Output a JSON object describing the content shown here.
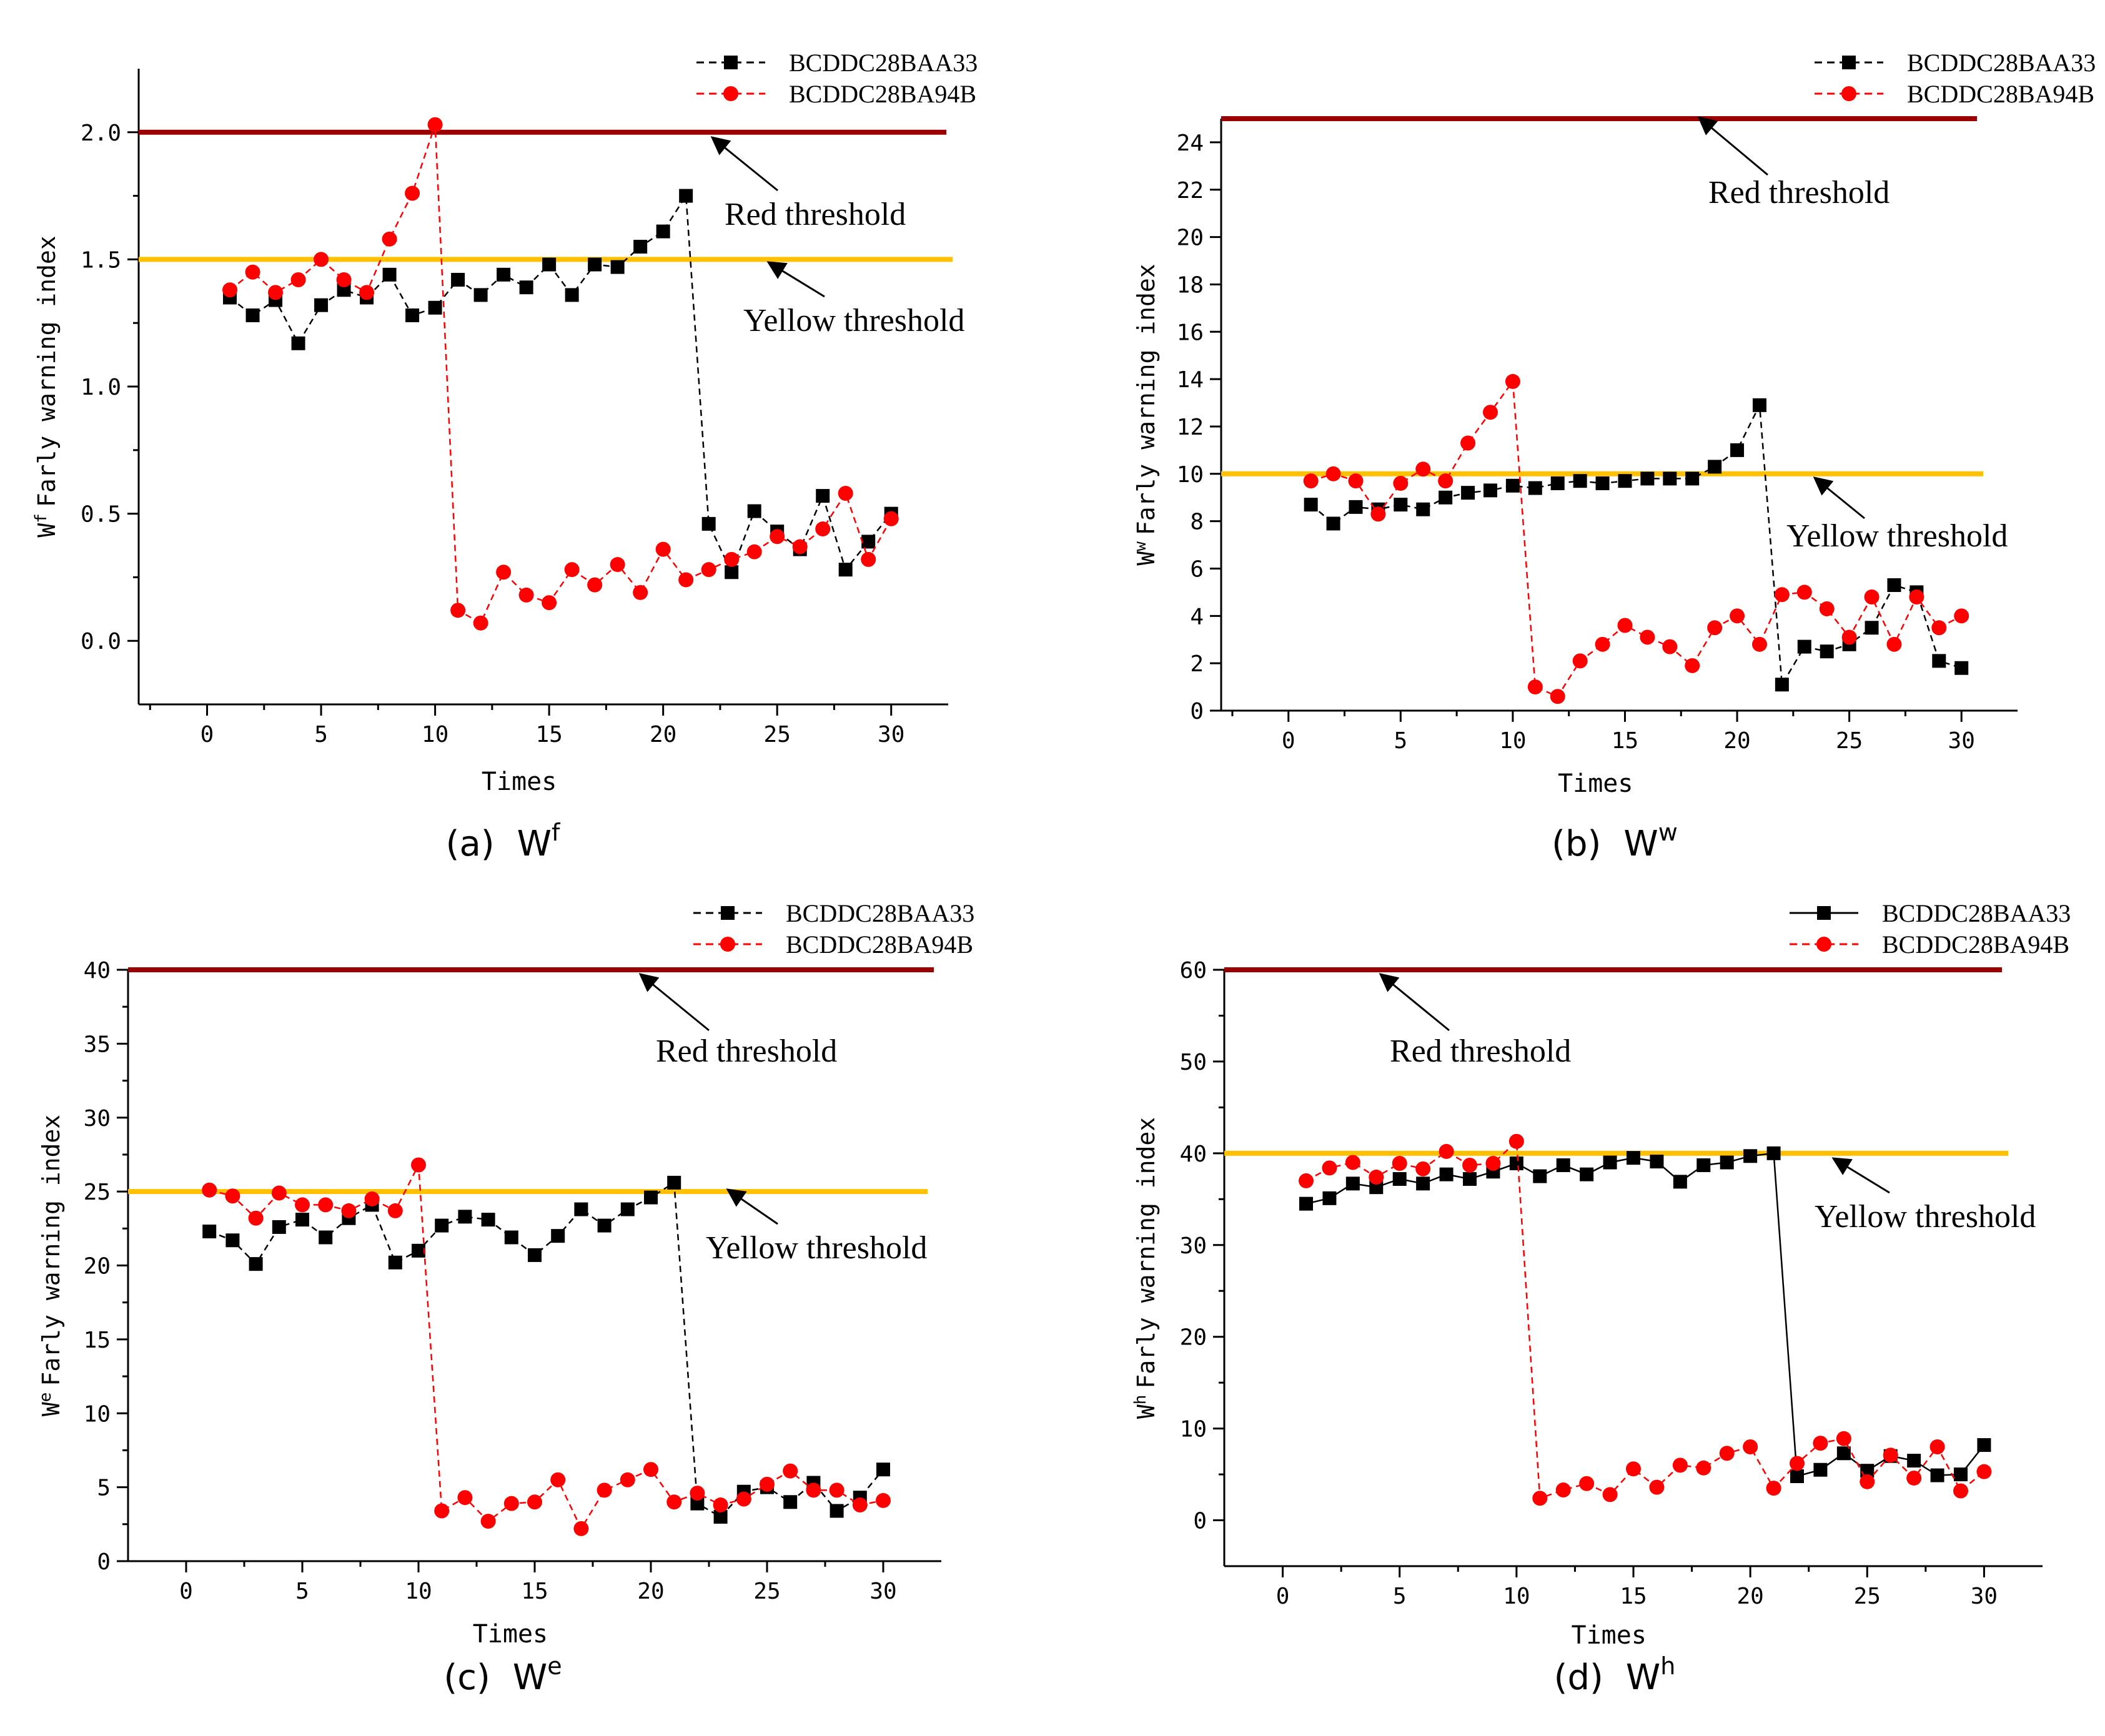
{
  "figure": {
    "series_names": [
      "BCDDC28BAA33",
      "BCDDC28BA94B"
    ],
    "series_colors": [
      "#000000",
      "#ff0000"
    ],
    "threshold_colors": {
      "red": "#9b0000",
      "yellow": "#ffc000"
    },
    "threshold_labels": {
      "red": "Red threshold",
      "yellow": "Yellow threshold"
    }
  },
  "chart_data": [
    {
      "type": "line",
      "caption_prefix": "(a)",
      "symbol": "W",
      "superscript": "f",
      "xlabel": "Times",
      "ylabel_rest": "Farly warning index",
      "xlim": [
        -3,
        32.5
      ],
      "ylim": [
        -0.25,
        2.25
      ],
      "xticks": [
        0,
        5,
        10,
        15,
        20,
        25,
        30
      ],
      "yticks": [
        0.0,
        0.5,
        1.0,
        1.5,
        2.0
      ],
      "ytick_labels": [
        "0.0",
        "0.5",
        "1.0",
        "1.5",
        "2.0"
      ],
      "minor_y": true,
      "red_threshold": 2.0,
      "yellow_threshold": 1.5,
      "x": [
        1,
        2,
        3,
        4,
        5,
        6,
        7,
        8,
        9,
        10,
        11,
        12,
        13,
        14,
        15,
        16,
        17,
        18,
        19,
        20,
        21,
        22,
        23,
        24,
        25,
        26,
        27,
        28,
        29,
        30
      ],
      "series": [
        {
          "name": "BCDDC28BAA33",
          "dash": true,
          "values": [
            1.35,
            1.28,
            1.34,
            1.17,
            1.32,
            1.38,
            1.35,
            1.44,
            1.28,
            1.31,
            1.42,
            1.36,
            1.44,
            1.39,
            1.48,
            1.36,
            1.48,
            1.47,
            1.55,
            1.61,
            1.75,
            0.46,
            0.27,
            0.51,
            0.43,
            0.36,
            0.57,
            0.28,
            0.39,
            0.5
          ]
        },
        {
          "name": "BCDDC28BA94B",
          "dash": true,
          "values": [
            1.38,
            1.45,
            1.37,
            1.42,
            1.5,
            1.42,
            1.37,
            1.58,
            1.76,
            2.03,
            0.12,
            0.07,
            0.27,
            0.18,
            0.15,
            0.28,
            0.22,
            0.3,
            0.19,
            0.36,
            0.24,
            0.28,
            0.32,
            0.35,
            0.41,
            0.37,
            0.44,
            0.58,
            0.32,
            0.48
          ]
        }
      ]
    },
    {
      "type": "line",
      "caption_prefix": "(b)",
      "symbol": "W",
      "superscript": "w",
      "xlabel": "Times",
      "ylabel_rest": "Farly warning index",
      "xlim": [
        -3,
        32.5
      ],
      "ylim": [
        0,
        25
      ],
      "xticks": [
        0,
        5,
        10,
        15,
        20,
        25,
        30
      ],
      "yticks": [
        0,
        2,
        4,
        6,
        8,
        10,
        12,
        14,
        16,
        18,
        20,
        22,
        24
      ],
      "ytick_labels": [
        "0",
        "2",
        "4",
        "6",
        "8",
        "10",
        "12",
        "14",
        "16",
        "18",
        "20",
        "22",
        "24"
      ],
      "minor_y": false,
      "red_threshold": 25,
      "yellow_threshold": 10,
      "x": [
        1,
        2,
        3,
        4,
        5,
        6,
        7,
        8,
        9,
        10,
        11,
        12,
        13,
        14,
        15,
        16,
        17,
        18,
        19,
        20,
        21,
        22,
        23,
        24,
        25,
        26,
        27,
        28,
        29,
        30
      ],
      "series": [
        {
          "name": "BCDDC28BAA33",
          "dash": true,
          "values": [
            8.7,
            7.9,
            8.6,
            8.5,
            8.7,
            8.5,
            9.0,
            9.2,
            9.3,
            9.5,
            9.4,
            9.6,
            9.7,
            9.6,
            9.7,
            9.8,
            9.8,
            9.8,
            10.3,
            11.0,
            12.9,
            1.1,
            2.7,
            2.5,
            2.8,
            3.5,
            5.3,
            5.0,
            2.1,
            1.8
          ]
        },
        {
          "name": "BCDDC28BA94B",
          "dash": true,
          "values": [
            9.7,
            10.0,
            9.7,
            8.3,
            9.6,
            10.2,
            9.7,
            11.3,
            12.6,
            13.9,
            1.0,
            0.6,
            2.1,
            2.8,
            3.6,
            3.1,
            2.7,
            1.9,
            3.5,
            4.0,
            2.8,
            4.9,
            5.0,
            4.3,
            3.1,
            4.8,
            2.8,
            4.8,
            3.5,
            4.0
          ]
        }
      ]
    },
    {
      "type": "line",
      "caption_prefix": "(c)",
      "symbol": "W",
      "superscript": "e",
      "xlabel": "Times",
      "ylabel_rest": "Farly warning index",
      "xlim": [
        -2.5,
        32.5
      ],
      "ylim": [
        0,
        40
      ],
      "xticks": [
        0,
        5,
        10,
        15,
        20,
        25,
        30
      ],
      "yticks": [
        0,
        5,
        10,
        15,
        20,
        25,
        30,
        35,
        40
      ],
      "ytick_labels": [
        "0",
        "5",
        "10",
        "15",
        "20",
        "25",
        "30",
        "35",
        "40"
      ],
      "minor_y": true,
      "red_threshold": 40,
      "yellow_threshold": 25,
      "x": [
        1,
        2,
        3,
        4,
        5,
        6,
        7,
        8,
        9,
        10,
        11,
        12,
        13,
        14,
        15,
        16,
        17,
        18,
        19,
        20,
        21,
        22,
        23,
        24,
        25,
        26,
        27,
        28,
        29,
        30
      ],
      "series": [
        {
          "name": "BCDDC28BAA33",
          "dash": true,
          "values": [
            22.3,
            21.7,
            20.1,
            22.6,
            23.1,
            21.9,
            23.2,
            24.1,
            20.2,
            21.0,
            22.7,
            23.3,
            23.1,
            21.9,
            20.7,
            22.0,
            23.8,
            22.7,
            23.8,
            24.6,
            25.6,
            3.9,
            3.0,
            4.7,
            5.0,
            4.0,
            5.3,
            3.4,
            4.3,
            6.2
          ]
        },
        {
          "name": "BCDDC28BA94B",
          "dash": true,
          "values": [
            25.1,
            24.7,
            23.2,
            24.9,
            24.1,
            24.1,
            23.7,
            24.5,
            23.7,
            26.8,
            3.4,
            4.3,
            2.7,
            3.9,
            4.0,
            5.5,
            2.2,
            4.8,
            5.5,
            6.2,
            4.0,
            4.6,
            3.8,
            4.2,
            5.2,
            6.1,
            4.8,
            4.8,
            3.8,
            4.1
          ]
        }
      ]
    },
    {
      "type": "line",
      "caption_prefix": "(d)",
      "symbol": "W",
      "superscript": "h",
      "xlabel": "Times",
      "ylabel_rest": "Farly warning index",
      "xlim": [
        -2.5,
        32.5
      ],
      "ylim": [
        -5,
        60
      ],
      "xticks": [
        0,
        5,
        10,
        15,
        20,
        25,
        30
      ],
      "yticks": [
        0,
        10,
        20,
        30,
        40,
        50,
        60
      ],
      "ytick_labels": [
        "0",
        "10",
        "20",
        "30",
        "40",
        "50",
        "60"
      ],
      "minor_y": true,
      "red_threshold": 60,
      "yellow_threshold": 40,
      "x": [
        1,
        2,
        3,
        4,
        5,
        6,
        7,
        8,
        9,
        10,
        11,
        12,
        13,
        14,
        15,
        16,
        17,
        18,
        19,
        20,
        21,
        22,
        23,
        24,
        25,
        26,
        27,
        28,
        29,
        30
      ],
      "series": [
        {
          "name": "BCDDC28BAA33",
          "dash": false,
          "values": [
            34.5,
            35.1,
            36.7,
            36.3,
            37.2,
            36.7,
            37.7,
            37.2,
            38.0,
            38.9,
            37.5,
            38.7,
            37.7,
            39.0,
            39.5,
            39.1,
            36.9,
            38.7,
            39.0,
            39.7,
            40.0,
            4.8,
            5.5,
            7.3,
            5.4,
            7.0,
            6.5,
            4.9,
            5.0,
            8.2
          ]
        },
        {
          "name": "BCDDC28BA94B",
          "dash": true,
          "values": [
            37.0,
            38.4,
            39.0,
            37.4,
            38.9,
            38.3,
            40.2,
            38.7,
            38.9,
            41.3,
            2.4,
            3.3,
            4.0,
            2.8,
            5.6,
            3.6,
            6.0,
            5.7,
            7.3,
            8.0,
            3.5,
            6.2,
            8.4,
            8.9,
            4.2,
            7.1,
            4.6,
            8.0,
            3.2,
            5.3
          ]
        }
      ]
    }
  ]
}
